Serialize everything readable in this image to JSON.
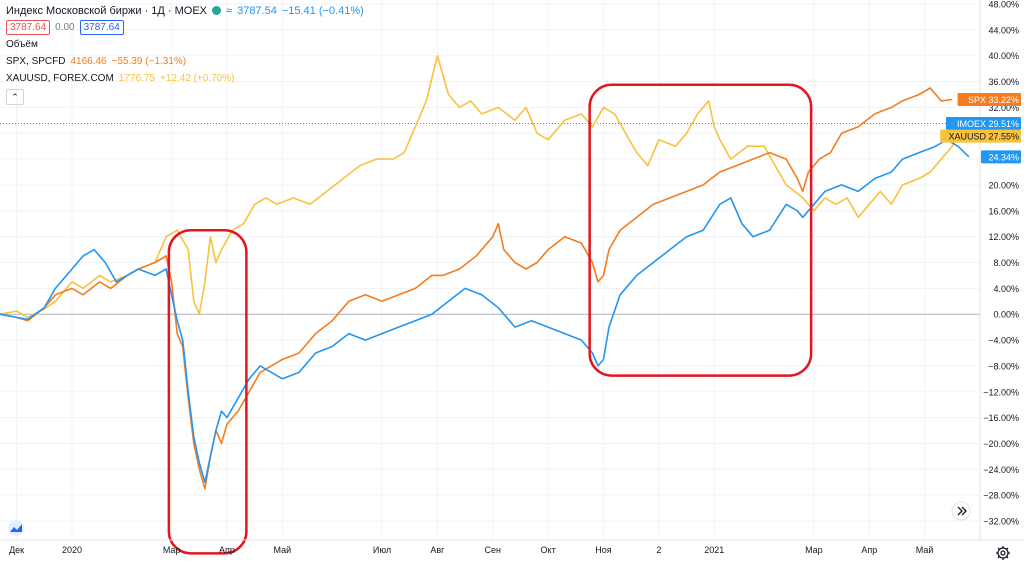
{
  "legend": {
    "title": "Индекс Московской биржи · 1Д · MOEX",
    "value": "3787.54",
    "change": "−15.41 (−0.41%)",
    "price_red": "3787.64",
    "spread": "0.00",
    "price_blue": "3787.64",
    "volume_label": "Объём",
    "spx_label": "SPX, SPCFD",
    "spx_value": "4166.46",
    "spx_change": "−55.39 (−1.31%)",
    "xau_label": "XAUUSD, FOREX.COM",
    "xau_value": "1776.75",
    "xau_change": "+12.42 (+0.70%)",
    "collapse": "⌃"
  },
  "colors": {
    "moex": "#2196f3",
    "spx": "#f57c1f",
    "xau": "#f9c23c",
    "annotation": "#e3161f",
    "grid": "#f0f3fa",
    "axis_text": "#131722"
  },
  "chart_data": {
    "type": "line",
    "ylim": [
      -34,
      48
    ],
    "yticks": [
      48,
      44,
      40,
      36,
      32,
      28,
      24,
      20,
      16,
      12,
      8,
      4,
      0,
      -4,
      -8,
      -12,
      -16,
      -20,
      -24,
      -28,
      -32
    ],
    "ytick_labels": [
      "48.00%",
      "44.00%",
      "40.00%",
      "36.00%",
      "32.00%",
      "28.00%",
      "24.00%",
      "20.00%",
      "16.00%",
      "12.00%",
      "8.00%",
      "4.00%",
      "0.00%",
      "−4.00%",
      "−8.00%",
      "−12.00%",
      "−16.00%",
      "−20.00%",
      "−24.00%",
      "−28.00%",
      "−32.00%"
    ],
    "xlim": [
      0,
      17.7
    ],
    "xticks": [
      {
        "x": 0.3,
        "label": "Дек"
      },
      {
        "x": 1.3,
        "label": "2020"
      },
      {
        "x": 3.1,
        "label": "Мар"
      },
      {
        "x": 4.1,
        "label": "Апр"
      },
      {
        "x": 5.1,
        "label": "Май"
      },
      {
        "x": 6.9,
        "label": "Июл"
      },
      {
        "x": 7.9,
        "label": "Авг"
      },
      {
        "x": 8.9,
        "label": "Сен"
      },
      {
        "x": 9.9,
        "label": "Окт"
      },
      {
        "x": 10.9,
        "label": "Ноя"
      },
      {
        "x": 11.9,
        "label": "2"
      },
      {
        "x": 12.9,
        "label": "2021"
      },
      {
        "x": 14.7,
        "label": "Мар"
      },
      {
        "x": 15.7,
        "label": "Апр"
      },
      {
        "x": 16.7,
        "label": "Май"
      }
    ],
    "series": [
      {
        "name": "XAUUSD",
        "key": "xau",
        "points": [
          [
            0,
            0
          ],
          [
            0.3,
            0.5
          ],
          [
            0.5,
            -0.5
          ],
          [
            0.8,
            0.8
          ],
          [
            1.0,
            2
          ],
          [
            1.3,
            5
          ],
          [
            1.5,
            4
          ],
          [
            1.8,
            6
          ],
          [
            2.0,
            5
          ],
          [
            2.3,
            6
          ],
          [
            2.5,
            7
          ],
          [
            2.8,
            8
          ],
          [
            3.0,
            12
          ],
          [
            3.2,
            13
          ],
          [
            3.4,
            10
          ],
          [
            3.5,
            2
          ],
          [
            3.6,
            0
          ],
          [
            3.7,
            5
          ],
          [
            3.8,
            12
          ],
          [
            3.9,
            8
          ],
          [
            4.0,
            10
          ],
          [
            4.2,
            13
          ],
          [
            4.4,
            14
          ],
          [
            4.6,
            17
          ],
          [
            4.8,
            18
          ],
          [
            5.0,
            17
          ],
          [
            5.3,
            18
          ],
          [
            5.6,
            17
          ],
          [
            5.9,
            19
          ],
          [
            6.2,
            21
          ],
          [
            6.5,
            23
          ],
          [
            6.8,
            24
          ],
          [
            7.1,
            24
          ],
          [
            7.3,
            25
          ],
          [
            7.5,
            29
          ],
          [
            7.7,
            33
          ],
          [
            7.9,
            40
          ],
          [
            8.0,
            37
          ],
          [
            8.1,
            34
          ],
          [
            8.3,
            32
          ],
          [
            8.5,
            33
          ],
          [
            8.7,
            31
          ],
          [
            9.0,
            32
          ],
          [
            9.3,
            30
          ],
          [
            9.5,
            32
          ],
          [
            9.7,
            28
          ],
          [
            9.9,
            27
          ],
          [
            10.2,
            30
          ],
          [
            10.5,
            31
          ],
          [
            10.7,
            29
          ],
          [
            10.9,
            32
          ],
          [
            11.1,
            31
          ],
          [
            11.3,
            28
          ],
          [
            11.5,
            25
          ],
          [
            11.7,
            23
          ],
          [
            11.9,
            27
          ],
          [
            12.2,
            26
          ],
          [
            12.4,
            28
          ],
          [
            12.6,
            31
          ],
          [
            12.8,
            33
          ],
          [
            12.9,
            29
          ],
          [
            13.0,
            27
          ],
          [
            13.2,
            24
          ],
          [
            13.5,
            26
          ],
          [
            13.8,
            26
          ],
          [
            14.0,
            23
          ],
          [
            14.2,
            20
          ],
          [
            14.5,
            18
          ],
          [
            14.7,
            16
          ],
          [
            14.9,
            18
          ],
          [
            15.1,
            17
          ],
          [
            15.3,
            18
          ],
          [
            15.5,
            15
          ],
          [
            15.7,
            17
          ],
          [
            15.9,
            19
          ],
          [
            16.1,
            17
          ],
          [
            16.3,
            20
          ],
          [
            16.6,
            21
          ],
          [
            16.8,
            22
          ],
          [
            17.0,
            24
          ],
          [
            17.2,
            26
          ],
          [
            17.3,
            28
          ],
          [
            17.5,
            27.55
          ]
        ]
      },
      {
        "name": "SPX",
        "key": "spx",
        "points": [
          [
            0,
            0
          ],
          [
            0.3,
            -0.5
          ],
          [
            0.5,
            -1
          ],
          [
            0.8,
            1
          ],
          [
            1.0,
            3
          ],
          [
            1.3,
            4
          ],
          [
            1.5,
            3
          ],
          [
            1.8,
            5
          ],
          [
            2.0,
            4
          ],
          [
            2.3,
            6
          ],
          [
            2.5,
            7
          ],
          [
            2.8,
            8
          ],
          [
            3.0,
            9
          ],
          [
            3.1,
            5
          ],
          [
            3.2,
            -3
          ],
          [
            3.3,
            -5
          ],
          [
            3.4,
            -13
          ],
          [
            3.5,
            -20
          ],
          [
            3.6,
            -24
          ],
          [
            3.7,
            -27
          ],
          [
            3.8,
            -22
          ],
          [
            3.9,
            -18
          ],
          [
            4.0,
            -20
          ],
          [
            4.1,
            -17
          ],
          [
            4.3,
            -15
          ],
          [
            4.5,
            -12
          ],
          [
            4.7,
            -9
          ],
          [
            4.9,
            -8
          ],
          [
            5.1,
            -7
          ],
          [
            5.4,
            -6
          ],
          [
            5.7,
            -3
          ],
          [
            6.0,
            -1
          ],
          [
            6.3,
            2
          ],
          [
            6.6,
            3
          ],
          [
            6.9,
            2
          ],
          [
            7.2,
            3
          ],
          [
            7.5,
            4
          ],
          [
            7.8,
            6
          ],
          [
            8.0,
            6
          ],
          [
            8.3,
            7
          ],
          [
            8.6,
            9
          ],
          [
            8.9,
            12
          ],
          [
            9.0,
            14
          ],
          [
            9.1,
            10
          ],
          [
            9.3,
            8
          ],
          [
            9.5,
            7
          ],
          [
            9.7,
            8
          ],
          [
            9.9,
            10
          ],
          [
            10.2,
            12
          ],
          [
            10.5,
            11
          ],
          [
            10.7,
            8
          ],
          [
            10.8,
            5
          ],
          [
            10.9,
            6
          ],
          [
            11.0,
            10
          ],
          [
            11.2,
            13
          ],
          [
            11.5,
            15
          ],
          [
            11.8,
            17
          ],
          [
            12.1,
            18
          ],
          [
            12.4,
            19
          ],
          [
            12.7,
            20
          ],
          [
            13.0,
            22
          ],
          [
            13.3,
            23
          ],
          [
            13.6,
            24
          ],
          [
            13.9,
            25
          ],
          [
            14.2,
            24
          ],
          [
            14.4,
            21
          ],
          [
            14.5,
            19
          ],
          [
            14.6,
            22
          ],
          [
            14.8,
            24
          ],
          [
            15.0,
            25
          ],
          [
            15.2,
            28
          ],
          [
            15.5,
            29
          ],
          [
            15.8,
            31
          ],
          [
            16.1,
            32
          ],
          [
            16.3,
            33
          ],
          [
            16.6,
            34
          ],
          [
            16.8,
            35
          ],
          [
            17.0,
            33
          ],
          [
            17.2,
            33.22
          ]
        ]
      },
      {
        "name": "MOEX",
        "key": "moex",
        "points": [
          [
            0,
            0
          ],
          [
            0.3,
            -0.5
          ],
          [
            0.5,
            -0.8
          ],
          [
            0.8,
            1
          ],
          [
            1.0,
            4
          ],
          [
            1.3,
            7
          ],
          [
            1.5,
            9
          ],
          [
            1.7,
            10
          ],
          [
            1.9,
            8
          ],
          [
            2.1,
            5
          ],
          [
            2.3,
            6
          ],
          [
            2.5,
            7
          ],
          [
            2.8,
            6
          ],
          [
            3.0,
            7
          ],
          [
            3.1,
            3
          ],
          [
            3.2,
            -1
          ],
          [
            3.3,
            -4
          ],
          [
            3.4,
            -12
          ],
          [
            3.5,
            -19
          ],
          [
            3.6,
            -23
          ],
          [
            3.7,
            -26
          ],
          [
            3.8,
            -22
          ],
          [
            3.9,
            -18
          ],
          [
            4.0,
            -15
          ],
          [
            4.1,
            -16
          ],
          [
            4.3,
            -13
          ],
          [
            4.5,
            -10
          ],
          [
            4.7,
            -8
          ],
          [
            4.9,
            -9
          ],
          [
            5.1,
            -10
          ],
          [
            5.4,
            -9
          ],
          [
            5.7,
            -6
          ],
          [
            6.0,
            -5
          ],
          [
            6.3,
            -3
          ],
          [
            6.6,
            -4
          ],
          [
            6.9,
            -3
          ],
          [
            7.2,
            -2
          ],
          [
            7.5,
            -1
          ],
          [
            7.8,
            0
          ],
          [
            8.1,
            2
          ],
          [
            8.4,
            4
          ],
          [
            8.7,
            3
          ],
          [
            9.0,
            1
          ],
          [
            9.3,
            -2
          ],
          [
            9.6,
            -1
          ],
          [
            9.9,
            -2
          ],
          [
            10.2,
            -3
          ],
          [
            10.5,
            -4
          ],
          [
            10.7,
            -6
          ],
          [
            10.8,
            -8
          ],
          [
            10.9,
            -7
          ],
          [
            11.0,
            -2
          ],
          [
            11.2,
            3
          ],
          [
            11.5,
            6
          ],
          [
            11.8,
            8
          ],
          [
            12.1,
            10
          ],
          [
            12.4,
            12
          ],
          [
            12.7,
            13
          ],
          [
            13.0,
            17
          ],
          [
            13.2,
            18
          ],
          [
            13.4,
            14
          ],
          [
            13.6,
            12
          ],
          [
            13.9,
            13
          ],
          [
            14.2,
            17
          ],
          [
            14.4,
            16
          ],
          [
            14.5,
            15
          ],
          [
            14.7,
            17
          ],
          [
            14.9,
            19
          ],
          [
            15.2,
            20
          ],
          [
            15.5,
            19
          ],
          [
            15.8,
            21
          ],
          [
            16.1,
            22
          ],
          [
            16.3,
            24
          ],
          [
            16.6,
            25
          ],
          [
            16.9,
            26
          ],
          [
            17.1,
            27
          ],
          [
            17.3,
            26
          ],
          [
            17.5,
            24.34
          ]
        ]
      }
    ],
    "badges": [
      {
        "label": "SPX",
        "value": "33.22%",
        "y": 33.22,
        "key": "spx"
      },
      {
        "label": "IMOEX",
        "value": "29.51%",
        "y": 29.51,
        "key": "moex"
      },
      {
        "label": "XAUUSD",
        "value": "27.55%",
        "y": 27.55,
        "key": "xau"
      },
      {
        "label": "",
        "value": "24.34%",
        "y": 24.34,
        "key": "moex"
      }
    ],
    "reference_line": 29.51,
    "annotations": [
      {
        "x0": 3.05,
        "x1": 4.45,
        "y0": 13,
        "y1": -37
      },
      {
        "x0": 10.65,
        "x1": 14.65,
        "y0": 35.5,
        "y1": -9.5
      }
    ]
  }
}
